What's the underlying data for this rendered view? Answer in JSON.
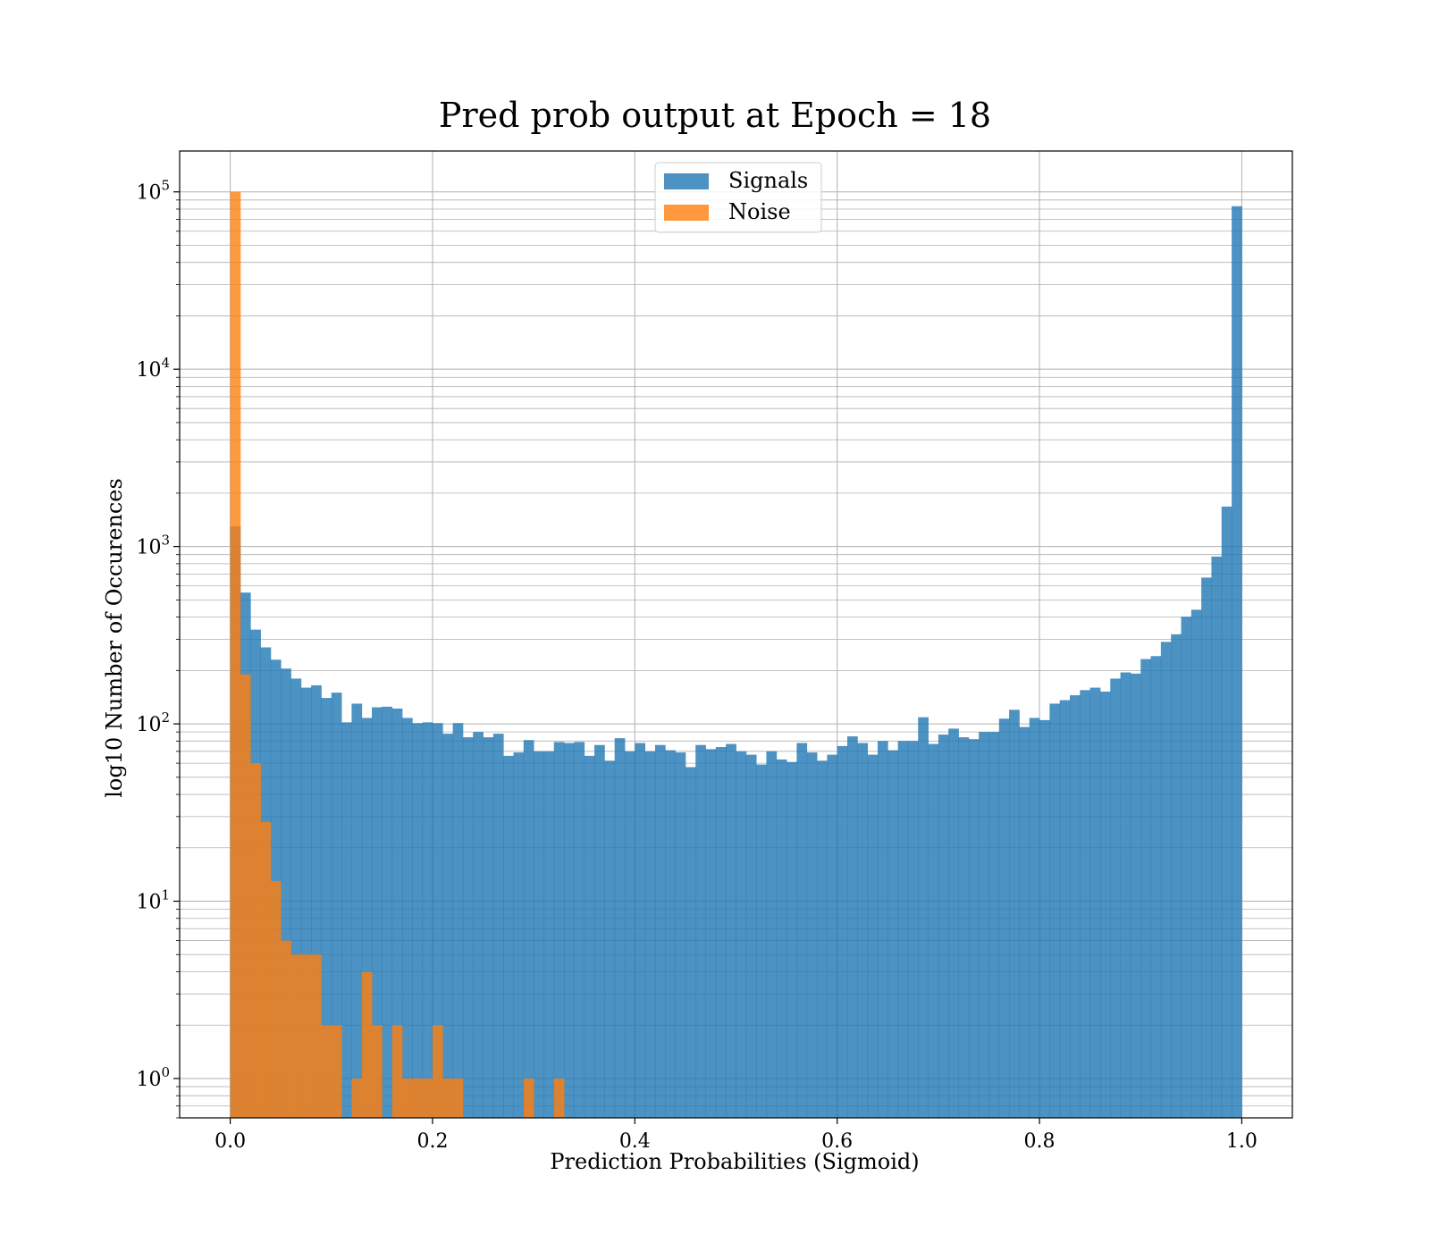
{
  "chart_data": {
    "type": "bar",
    "title": "Pred prob output at Epoch = 18",
    "xlabel": "Prediction Probabilities (Sigmoid)",
    "ylabel": "log10 Number of Occurences",
    "y_scale": "log",
    "xlim": [
      -0.05,
      1.05
    ],
    "ylim": [
      0.6,
      170000
    ],
    "grid": true,
    "legend_placement": "upper-center",
    "x_ticks": [
      {
        "value": 0.0,
        "label": "0.0"
      },
      {
        "value": 0.2,
        "label": "0.2"
      },
      {
        "value": 0.4,
        "label": "0.4"
      },
      {
        "value": 0.6,
        "label": "0.6"
      },
      {
        "value": 0.8,
        "label": "0.8"
      },
      {
        "value": 1.0,
        "label": "1.0"
      }
    ],
    "y_ticks": [
      {
        "value": 1,
        "base": "10",
        "exp": "0"
      },
      {
        "value": 10,
        "base": "10",
        "exp": "1"
      },
      {
        "value": 100,
        "base": "10",
        "exp": "2"
      },
      {
        "value": 1000,
        "base": "10",
        "exp": "3"
      },
      {
        "value": 10000,
        "base": "10",
        "exp": "4"
      },
      {
        "value": 100000,
        "base": "10",
        "exp": "5"
      }
    ],
    "bin_width": 0.01,
    "bin_start": 0.0,
    "series": [
      {
        "name": "Signals",
        "color": "#1f77b4",
        "values": [
          1300,
          550,
          340,
          270,
          230,
          205,
          180,
          160,
          165,
          140,
          150,
          102,
          130,
          108,
          124,
          125,
          122,
          108,
          101,
          102,
          101,
          88,
          101,
          84,
          90,
          84,
          88,
          66,
          69,
          81,
          70,
          70,
          79,
          78,
          79,
          66,
          76,
          62,
          83,
          70,
          78,
          70,
          76,
          71,
          69,
          57,
          76,
          72,
          74,
          77,
          70,
          67,
          59,
          70,
          63,
          61,
          78,
          69,
          62,
          67,
          75,
          85,
          78,
          67,
          80,
          71,
          80,
          80,
          109,
          77,
          87,
          94,
          84,
          82,
          90,
          90,
          107,
          120,
          96,
          108,
          105,
          130,
          136,
          145,
          155,
          160,
          152,
          180,
          195,
          192,
          232,
          241,
          290,
          320,
          402,
          440,
          668,
          878,
          1680,
          83000
        ]
      },
      {
        "name": "Noise",
        "color": "#ff7f0e",
        "values": [
          100000,
          190,
          60,
          28,
          13,
          6,
          5,
          5,
          5,
          2,
          2,
          0,
          1,
          4,
          2,
          0,
          2,
          1,
          1,
          1,
          2,
          1,
          1,
          0,
          0,
          0,
          0,
          0,
          0,
          1,
          0,
          0,
          1,
          0,
          0,
          0,
          0,
          0,
          0,
          0,
          0,
          0,
          0,
          0,
          0,
          0,
          0,
          0,
          0,
          0,
          0,
          0,
          0,
          0,
          0,
          0,
          0,
          0,
          0,
          0,
          0,
          0,
          0,
          0,
          0,
          0,
          0,
          0,
          0,
          0,
          0,
          0,
          0,
          0,
          0,
          0,
          0,
          0,
          0,
          0,
          0,
          0,
          0,
          0,
          0,
          0,
          0,
          0,
          0,
          0,
          0,
          0,
          0,
          0,
          0,
          0,
          0,
          0,
          0,
          0
        ]
      }
    ]
  }
}
